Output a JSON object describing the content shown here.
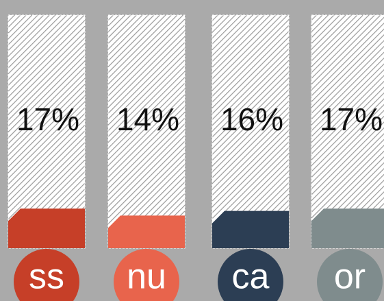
{
  "chart_data": {
    "type": "bar",
    "categories": [
      "ss",
      "nu",
      "ca",
      "or"
    ],
    "values": [
      17,
      14,
      16,
      17
    ],
    "value_labels": [
      "17%",
      "14%",
      "16%",
      "17%"
    ],
    "colors": [
      "#c63f28",
      "#e8644c",
      "#2c3e54",
      "#7f8c8d"
    ],
    "ylim": [
      0,
      100
    ]
  }
}
